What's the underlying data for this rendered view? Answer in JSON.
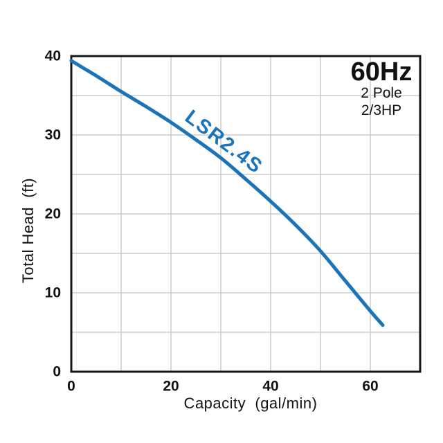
{
  "chart_data": {
    "type": "line",
    "title": "60Hz",
    "subtitle_lines": [
      "2 Pole",
      "2/3HP"
    ],
    "xlabel": "Capacity  (gal/min)",
    "ylabel": "Total Head  (ft)",
    "xlim": [
      0,
      70
    ],
    "ylim": [
      0,
      40
    ],
    "x_ticks": [
      0,
      20,
      40,
      60
    ],
    "y_ticks": [
      0,
      10,
      20,
      30,
      40
    ],
    "x_grid_step": 10,
    "y_grid_step": 5,
    "grid": true,
    "legend_position": "none",
    "series": [
      {
        "name": "LSR2.4S",
        "color": "#1b74b8",
        "label_rotation_deg": 37,
        "label_anchor": {
          "x_gal_min": 30.5,
          "head_ft": 29.0
        },
        "points": [
          [
            0,
            39.4
          ],
          [
            5,
            37.5
          ],
          [
            10,
            35.5
          ],
          [
            15,
            33.6
          ],
          [
            20,
            31.6
          ],
          [
            25,
            29.4
          ],
          [
            30,
            27.1
          ],
          [
            35,
            24.4
          ],
          [
            40,
            21.6
          ],
          [
            45,
            18.6
          ],
          [
            50,
            15.3
          ],
          [
            55,
            11.5
          ],
          [
            60,
            7.7
          ],
          [
            62.5,
            5.9
          ]
        ]
      }
    ]
  },
  "colors": {
    "curve_blue": "#1b74b8",
    "grid_gray": "#c4c4c4",
    "axis_black": "#141414",
    "text_black": "#111111",
    "background": "#ffffff"
  }
}
